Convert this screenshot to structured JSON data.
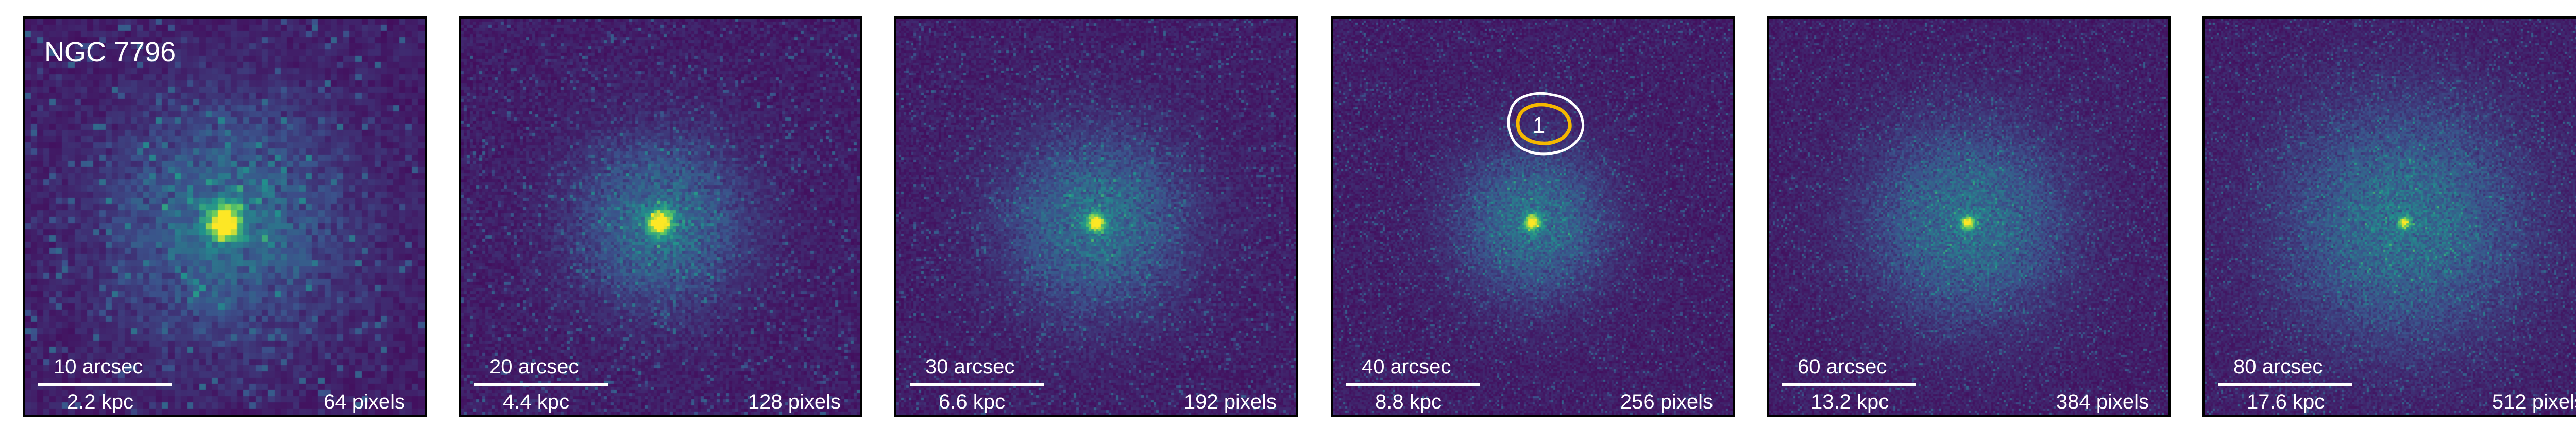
{
  "galaxy_name": "NGC 7796",
  "colormap": [
    "#440154",
    "#3b528b",
    "#21918c",
    "#5ec962",
    "#fde725"
  ],
  "contour_colors": {
    "outer": "#ffffff",
    "inner": "#f5b800"
  },
  "panels": [
    {
      "scale_arcsec": "10 arcsec",
      "scale_kpc": "2.2 kpc",
      "pixels": "64 pixels"
    },
    {
      "scale_arcsec": "20 arcsec",
      "scale_kpc": "4.4 kpc",
      "pixels": "128 pixels"
    },
    {
      "scale_arcsec": "30 arcsec",
      "scale_kpc": "6.6 kpc",
      "pixels": "192 pixels"
    },
    {
      "scale_arcsec": "40 arcsec",
      "scale_kpc": "8.8 kpc",
      "pixels": "256 pixels",
      "source_label": "1"
    },
    {
      "scale_arcsec": "60 arcsec",
      "scale_kpc": "13.2 kpc",
      "pixels": "384 pixels"
    },
    {
      "scale_arcsec": "80 arcsec",
      "scale_kpc": "17.6 kpc",
      "pixels": "512 pixels"
    }
  ]
}
